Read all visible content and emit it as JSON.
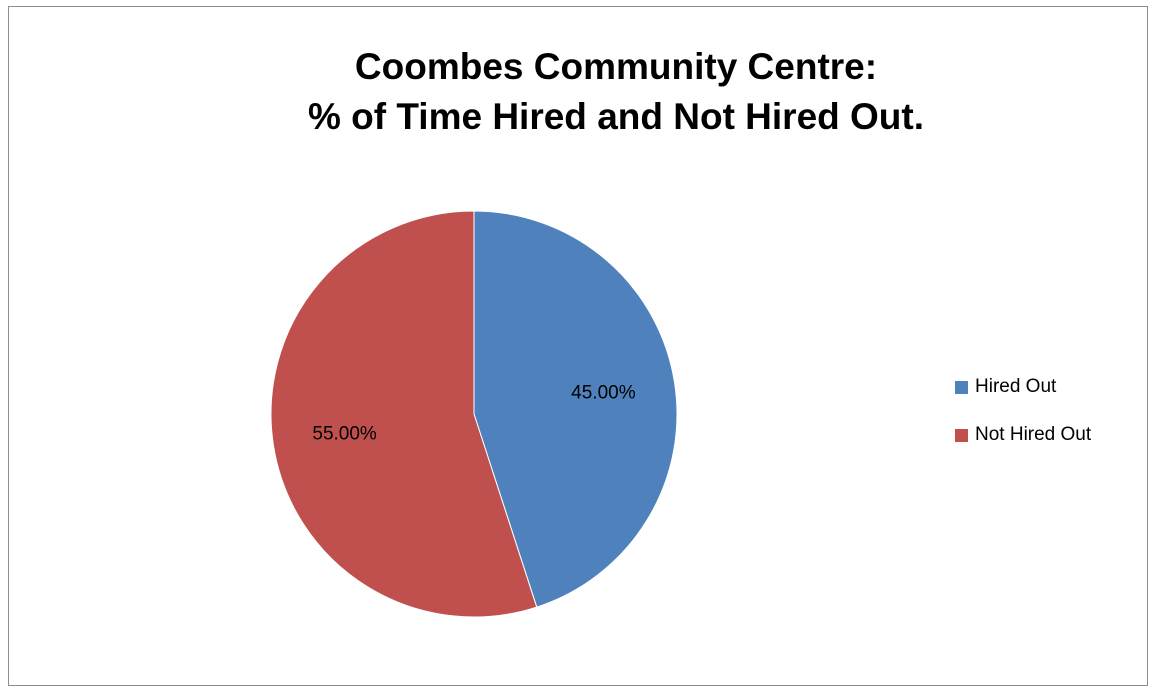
{
  "chart_data": {
    "type": "pie",
    "title": [
      "Coombes Community Centre:",
      "% of Time Hired and Not Hired Out."
    ],
    "categories": [
      "Hired Out",
      "Not Hired Out"
    ],
    "values": [
      45.0,
      55.0
    ],
    "data_labels": [
      "45.00%",
      "55.00%"
    ],
    "colors": [
      "#4f81bd",
      "#c0504d"
    ],
    "start_angle": "12 o'clock",
    "direction": "clockwise",
    "legend_position": "right"
  }
}
